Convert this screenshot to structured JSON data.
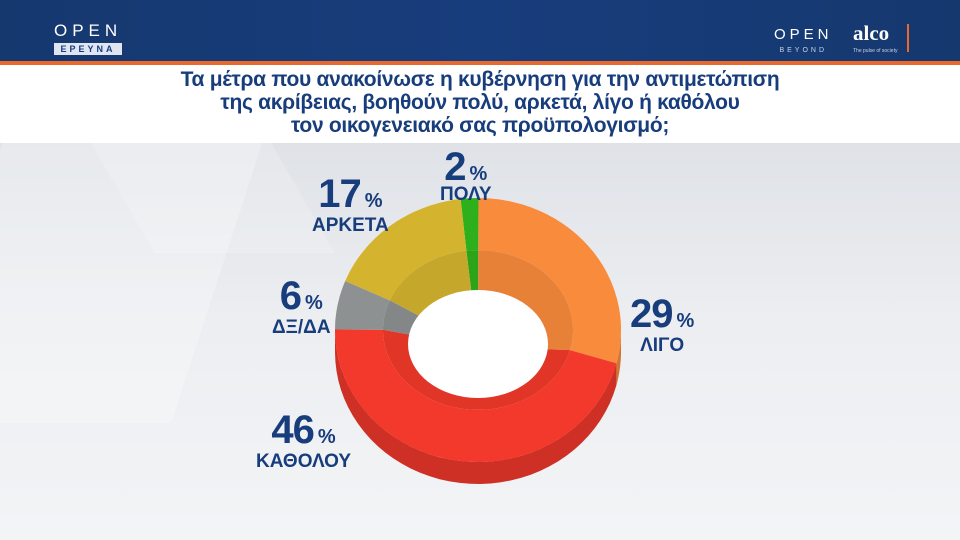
{
  "header": {
    "left_brand": {
      "logo": "OPEN",
      "subtitle": "ΕΡΕΥΝΑ"
    },
    "right_brand": {
      "logo": "OPEN",
      "subtitle": "BEYOND",
      "partner": "alco",
      "partner_tagline": "The pulse of society"
    },
    "accent_color": "#e8692d",
    "bar_color": "#183d7c"
  },
  "question": {
    "line1": "Τα μέτρα που ανακοίνωσε η κυβέρνηση για την αντιμετώπιση",
    "line2": "της ακρίβειας, βοηθούν πολύ, αρκετά, λίγο ή καθόλου",
    "line3": "τον οικογενειακό σας προϋπολογισμό;"
  },
  "labels": {
    "polu": {
      "value": "2",
      "unit": "%",
      "category": "ΠΟΛΥ"
    },
    "ligo": {
      "value": "29",
      "unit": "%",
      "category": "ΛΙΓΟ"
    },
    "katholou": {
      "value": "46",
      "unit": "%",
      "category": "ΚΑΘΟΛΟΥ"
    },
    "dxda": {
      "value": "6",
      "unit": "%",
      "category": "ΔΞ/ΔΑ"
    },
    "arketa": {
      "value": "17",
      "unit": "%",
      "category": "ΑΡΚΕΤΑ"
    }
  },
  "chart_data": {
    "type": "pie",
    "variant": "donut-3d",
    "title": "Τα μέτρα που ανακοίνωσε η κυβέρνηση για την αντιμετώπιση της ακρίβειας, βοηθούν πολύ, αρκετά, λίγο ή καθόλου τον οικογενειακό σας προϋπολογισμό;",
    "categories": [
      "ΠΟΛΥ",
      "ΛΙΓΟ",
      "ΚΑΘΟΛΟΥ",
      "ΔΞ/ΔΑ",
      "ΑΡΚΕΤΑ"
    ],
    "values": [
      2,
      29,
      46,
      6,
      17
    ],
    "unit": "%",
    "colors": [
      "#2eb01c",
      "#f98b3c",
      "#f2392b",
      "#8e9192",
      "#d4b42e"
    ],
    "start_angle_deg": -7,
    "direction": "clockwise",
    "legend": "none (direct labels)"
  }
}
